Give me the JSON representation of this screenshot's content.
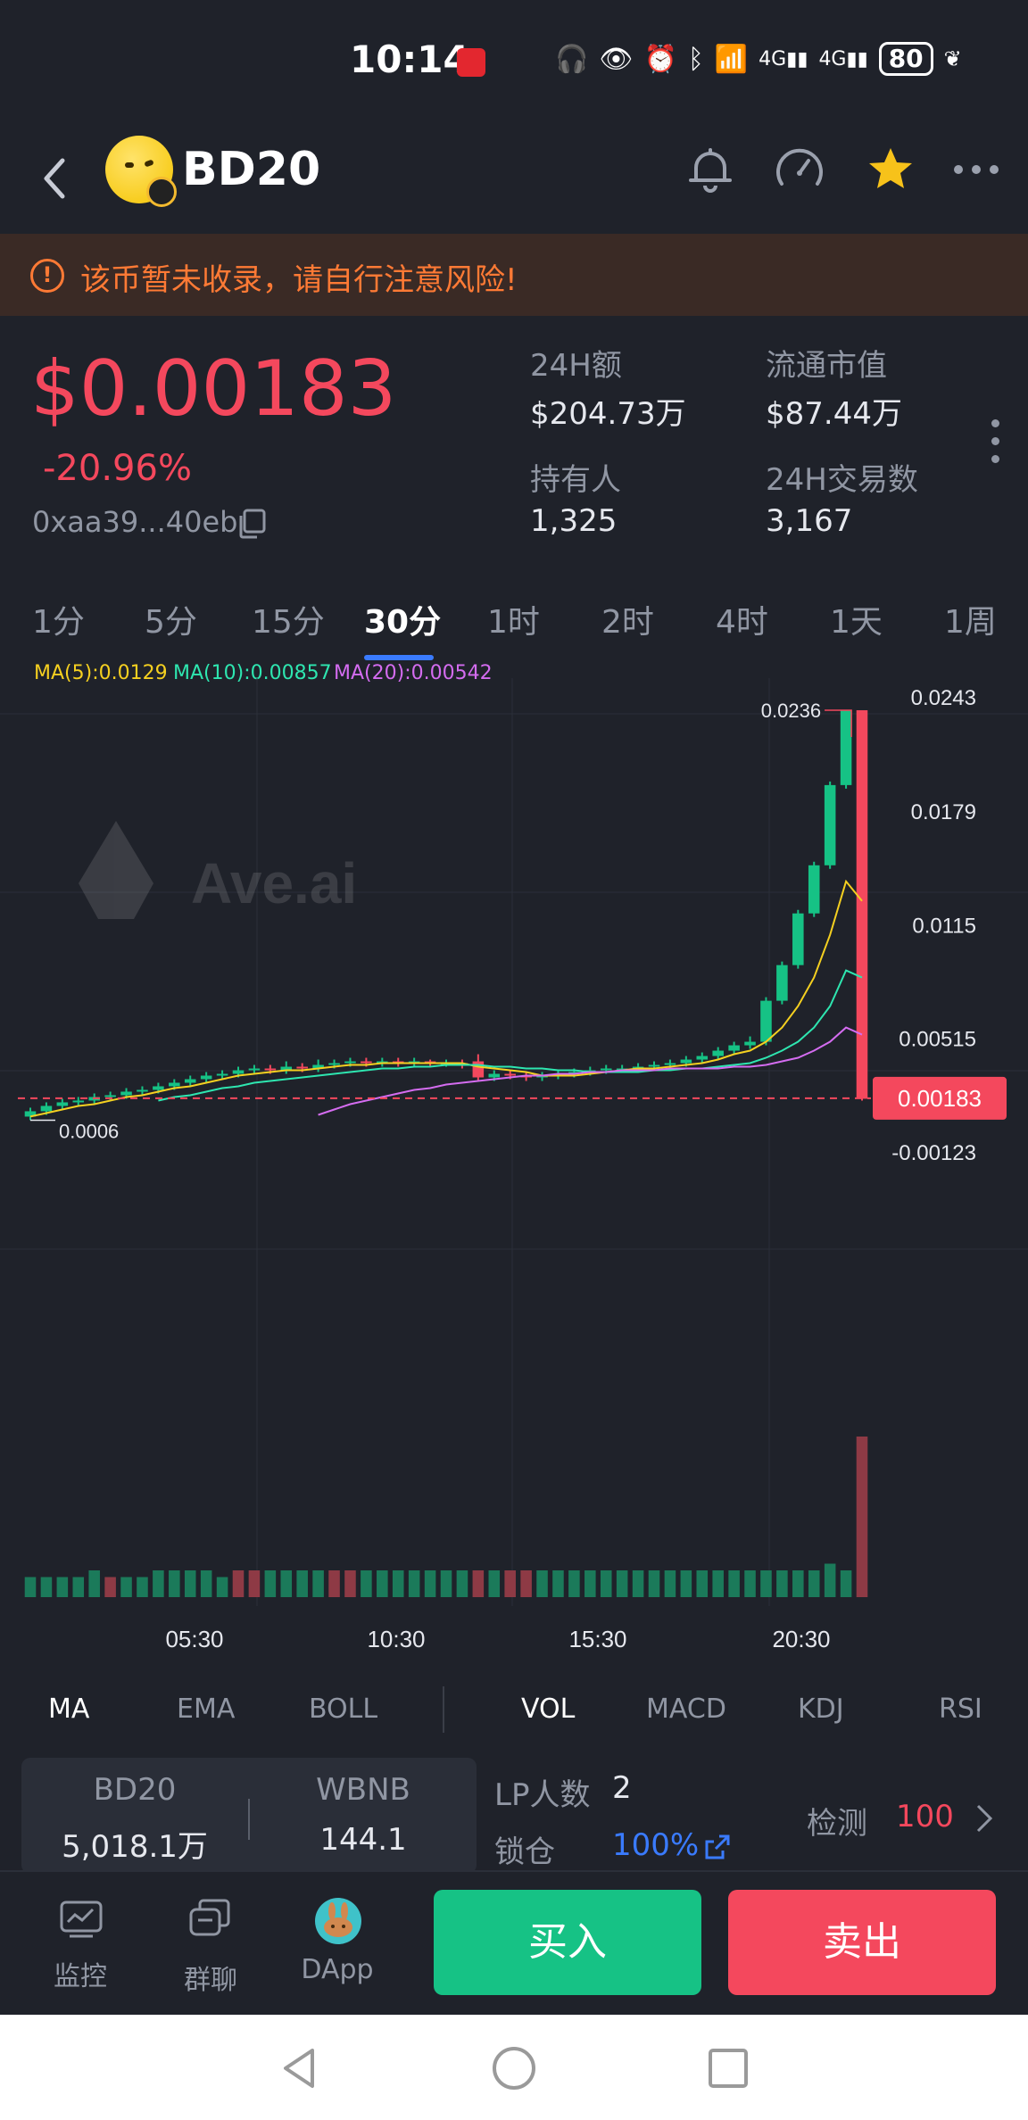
{
  "status_bar": {
    "time": "10:14",
    "battery": "80",
    "icons": [
      "headphones-icon",
      "eye-icon",
      "alarm-icon",
      "bluetooth-icon",
      "wifi-icon",
      "signal-4g-icon",
      "signal-4g-icon",
      "battery-icon",
      "leaf-icon"
    ]
  },
  "header": {
    "title": "BD20"
  },
  "warning": {
    "text": "该币暂未收录，请自行注意风险!"
  },
  "price": {
    "value": "$0.00183",
    "change": "-20.96%",
    "address": "0xaa39...40eb"
  },
  "stats": {
    "volume_label": "24H额",
    "volume_value": "$204.73万",
    "mcap_label": "流通市值",
    "mcap_value": "$87.44万",
    "holders_label": "持有人",
    "holders_value": "1,325",
    "txs_label": "24H交易数",
    "txs_value": "3,167"
  },
  "intervals": [
    "1分",
    "5分",
    "15分",
    "30分",
    "1时",
    "2时",
    "4时",
    "1天",
    "1周"
  ],
  "active_interval": "30分",
  "ma_legend": {
    "ma5": "MA(5):0.0129",
    "ma10": "MA(10):0.00857",
    "ma20": "MA(20):0.00542"
  },
  "chart_data": {
    "type": "candlestick",
    "y_axis_labels": [
      "0.0243",
      "0.0179",
      "0.0115",
      "0.00515",
      "-0.00123"
    ],
    "ylim": [
      -0.00123,
      0.0243
    ],
    "x_axis_labels": [
      "05:30",
      "10:30",
      "15:30",
      "20:30"
    ],
    "current_price_label": "0.00183",
    "high_label": "0.0236",
    "low_label": "0.0006",
    "watermark": "Ave.ai",
    "colors": {
      "up": "#16c285",
      "down": "#f4485d",
      "ma5": "#f5d020",
      "ma10": "#2ee6b0",
      "ma20": "#d46cf0"
    },
    "candles": [
      {
        "o": 0.0008,
        "c": 0.0011,
        "h": 0.0013,
        "l": 0.0006
      },
      {
        "o": 0.0011,
        "c": 0.0014,
        "h": 0.0016,
        "l": 0.0009
      },
      {
        "o": 0.0014,
        "c": 0.0016,
        "h": 0.0018,
        "l": 0.0012
      },
      {
        "o": 0.0016,
        "c": 0.0017,
        "h": 0.0019,
        "l": 0.0014
      },
      {
        "o": 0.0017,
        "c": 0.0019,
        "h": 0.0021,
        "l": 0.0015
      },
      {
        "o": 0.0019,
        "c": 0.002,
        "h": 0.0022,
        "l": 0.0017
      },
      {
        "o": 0.002,
        "c": 0.0022,
        "h": 0.0024,
        "l": 0.0018
      },
      {
        "o": 0.0022,
        "c": 0.0023,
        "h": 0.0025,
        "l": 0.002
      },
      {
        "o": 0.0023,
        "c": 0.0025,
        "h": 0.0027,
        "l": 0.0021
      },
      {
        "o": 0.0025,
        "c": 0.0027,
        "h": 0.0029,
        "l": 0.0023
      },
      {
        "o": 0.0027,
        "c": 0.0029,
        "h": 0.0031,
        "l": 0.0025
      },
      {
        "o": 0.0029,
        "c": 0.0031,
        "h": 0.0033,
        "l": 0.0027
      },
      {
        "o": 0.0031,
        "c": 0.0032,
        "h": 0.0034,
        "l": 0.0029
      },
      {
        "o": 0.0032,
        "c": 0.0034,
        "h": 0.0036,
        "l": 0.003
      },
      {
        "o": 0.0034,
        "c": 0.0035,
        "h": 0.0037,
        "l": 0.0032
      },
      {
        "o": 0.0035,
        "c": 0.0034,
        "h": 0.0037,
        "l": 0.0032
      },
      {
        "o": 0.0034,
        "c": 0.0036,
        "h": 0.0039,
        "l": 0.0032
      },
      {
        "o": 0.0036,
        "c": 0.0035,
        "h": 0.0038,
        "l": 0.0033
      },
      {
        "o": 0.0035,
        "c": 0.0037,
        "h": 0.004,
        "l": 0.0033
      },
      {
        "o": 0.0037,
        "c": 0.0038,
        "h": 0.004,
        "l": 0.0035
      },
      {
        "o": 0.0038,
        "c": 0.0039,
        "h": 0.0041,
        "l": 0.0036
      },
      {
        "o": 0.0039,
        "c": 0.0038,
        "h": 0.0041,
        "l": 0.0036
      },
      {
        "o": 0.0038,
        "c": 0.0039,
        "h": 0.0041,
        "l": 0.0036
      },
      {
        "o": 0.0039,
        "c": 0.0038,
        "h": 0.0041,
        "l": 0.0036
      },
      {
        "o": 0.0038,
        "c": 0.0039,
        "h": 0.0041,
        "l": 0.0036
      },
      {
        "o": 0.0039,
        "c": 0.0038,
        "h": 0.004,
        "l": 0.0036
      },
      {
        "o": 0.0038,
        "c": 0.0038,
        "h": 0.004,
        "l": 0.0036
      },
      {
        "o": 0.0038,
        "c": 0.0037,
        "h": 0.004,
        "l": 0.0035
      },
      {
        "o": 0.0039,
        "c": 0.003,
        "h": 0.0043,
        "l": 0.0028
      },
      {
        "o": 0.003,
        "c": 0.0032,
        "h": 0.0034,
        "l": 0.0028
      },
      {
        "o": 0.0032,
        "c": 0.0031,
        "h": 0.0034,
        "l": 0.0029
      },
      {
        "o": 0.0031,
        "c": 0.003,
        "h": 0.0033,
        "l": 0.0028
      },
      {
        "o": 0.003,
        "c": 0.0031,
        "h": 0.0033,
        "l": 0.0028
      },
      {
        "o": 0.0031,
        "c": 0.0032,
        "h": 0.0034,
        "l": 0.0029
      },
      {
        "o": 0.0032,
        "c": 0.0033,
        "h": 0.0035,
        "l": 0.003
      },
      {
        "o": 0.0033,
        "c": 0.0034,
        "h": 0.0036,
        "l": 0.0031
      },
      {
        "o": 0.0034,
        "c": 0.0035,
        "h": 0.0037,
        "l": 0.0032
      },
      {
        "o": 0.0035,
        "c": 0.0035,
        "h": 0.0037,
        "l": 0.0033
      },
      {
        "o": 0.0035,
        "c": 0.0036,
        "h": 0.0038,
        "l": 0.0033
      },
      {
        "o": 0.0036,
        "c": 0.0037,
        "h": 0.0039,
        "l": 0.0034
      },
      {
        "o": 0.0037,
        "c": 0.0038,
        "h": 0.004,
        "l": 0.0035
      },
      {
        "o": 0.0038,
        "c": 0.004,
        "h": 0.0042,
        "l": 0.0036
      },
      {
        "o": 0.004,
        "c": 0.0042,
        "h": 0.0044,
        "l": 0.0038
      },
      {
        "o": 0.0042,
        "c": 0.0045,
        "h": 0.0047,
        "l": 0.004
      },
      {
        "o": 0.0045,
        "c": 0.0048,
        "h": 0.005,
        "l": 0.0043
      },
      {
        "o": 0.0048,
        "c": 0.005,
        "h": 0.0053,
        "l": 0.0046
      },
      {
        "o": 0.005,
        "c": 0.0073,
        "h": 0.0075,
        "l": 0.0048
      },
      {
        "o": 0.0073,
        "c": 0.0093,
        "h": 0.0095,
        "l": 0.0071
      },
      {
        "o": 0.0093,
        "c": 0.0122,
        "h": 0.0124,
        "l": 0.0091
      },
      {
        "o": 0.0122,
        "c": 0.0149,
        "h": 0.0151,
        "l": 0.012
      },
      {
        "o": 0.0149,
        "c": 0.0194,
        "h": 0.0196,
        "l": 0.0147
      },
      {
        "o": 0.0194,
        "c": 0.0236,
        "h": 0.0236,
        "l": 0.0192
      },
      {
        "o": 0.0236,
        "c": 0.0018,
        "h": 0.0236,
        "l": 0.0017
      }
    ],
    "ma5": [
      0.0008,
      0.001,
      0.0012,
      0.0014,
      0.0015,
      0.0017,
      0.0019,
      0.002,
      0.0022,
      0.0024,
      0.0025,
      0.0027,
      0.0029,
      0.0031,
      0.0032,
      0.0033,
      0.0034,
      0.0034,
      0.0035,
      0.0036,
      0.0037,
      0.0037,
      0.0038,
      0.0038,
      0.0038,
      0.0038,
      0.0038,
      0.0038,
      0.0036,
      0.0035,
      0.0034,
      0.0033,
      0.0031,
      0.0031,
      0.0031,
      0.0032,
      0.0033,
      0.0034,
      0.0035,
      0.0035,
      0.0036,
      0.0037,
      0.0038,
      0.004,
      0.0043,
      0.0045,
      0.005,
      0.0058,
      0.007,
      0.0086,
      0.011,
      0.014,
      0.0129
    ],
    "ma10": [
      null,
      null,
      null,
      null,
      null,
      null,
      null,
      null,
      0.0017,
      0.0019,
      0.002,
      0.0022,
      0.0024,
      0.0025,
      0.0027,
      0.0028,
      0.0029,
      0.003,
      0.0031,
      0.0032,
      0.0033,
      0.0034,
      0.0035,
      0.0035,
      0.0036,
      0.0036,
      0.0037,
      0.0037,
      0.0037,
      0.0036,
      0.0036,
      0.0035,
      0.0035,
      0.0034,
      0.0034,
      0.0033,
      0.0033,
      0.0033,
      0.0033,
      0.0034,
      0.0034,
      0.0035,
      0.0035,
      0.0036,
      0.0037,
      0.0038,
      0.0041,
      0.0045,
      0.005,
      0.0058,
      0.007,
      0.009,
      0.0086
    ],
    "ma20": [
      null,
      null,
      null,
      null,
      null,
      null,
      null,
      null,
      null,
      null,
      null,
      null,
      null,
      null,
      null,
      null,
      null,
      null,
      0.0009,
      0.0012,
      0.0015,
      0.0017,
      0.0019,
      0.0021,
      0.0023,
      0.0024,
      0.0026,
      0.0027,
      0.0028,
      0.0029,
      0.003,
      0.0031,
      0.0031,
      0.0032,
      0.0032,
      0.0033,
      0.0033,
      0.0034,
      0.0034,
      0.0034,
      0.0035,
      0.0035,
      0.0035,
      0.0035,
      0.0036,
      0.0036,
      0.0037,
      0.0039,
      0.0041,
      0.0045,
      0.005,
      0.0058,
      0.0054
    ],
    "volume": [
      3,
      3,
      3,
      3,
      4,
      3,
      3,
      3,
      4,
      4,
      4,
      4,
      3,
      4,
      4,
      4,
      4,
      4,
      4,
      4,
      4,
      4,
      4,
      4,
      4,
      4,
      4,
      4,
      4,
      4,
      4,
      4,
      4,
      4,
      4,
      4,
      4,
      4,
      4,
      4,
      4,
      4,
      4,
      4,
      4,
      4,
      4,
      4,
      4,
      4,
      5,
      4,
      24
    ],
    "volume_colors_down": [
      5,
      13,
      14,
      19,
      20,
      28,
      30,
      31,
      52
    ]
  },
  "indicators": [
    "MA",
    "EMA",
    "BOLL",
    "VOL",
    "MACD",
    "KDJ",
    "RSI"
  ],
  "pool": {
    "token_a_label": "BD20",
    "token_a_value": "5,018.1万",
    "token_b_label": "WBNB",
    "token_b_value": "144.1",
    "lp_label": "LP人数",
    "lp_value": "2",
    "lock_label": "锁仓",
    "lock_value": "100%",
    "detect_label": "检测",
    "detect_value": "100"
  },
  "bottom_nav": {
    "monitor": "监控",
    "chat": "群聊",
    "dapp": "DApp",
    "buy": "买入",
    "sell": "卖出"
  }
}
